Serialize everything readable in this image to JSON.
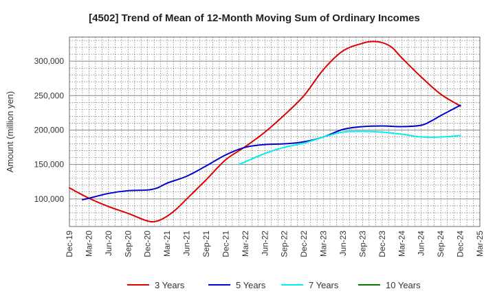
{
  "chart_data": {
    "type": "line",
    "title": "[4502]  Trend of Mean of 12-Month Moving Sum of Ordinary Incomes",
    "xlabel": "",
    "ylabel": "Amount (million yen)",
    "categories": [
      "Dec-19",
      "Mar-20",
      "Jun-20",
      "Sep-20",
      "Dec-20",
      "Mar-21",
      "Jun-21",
      "Sep-21",
      "Dec-21",
      "Mar-22",
      "Jun-22",
      "Sep-22",
      "Dec-22",
      "Mar-23",
      "Jun-23",
      "Sep-23",
      "Dec-23",
      "Mar-24",
      "Jun-24",
      "Sep-24",
      "Dec-24",
      "Mar-25"
    ],
    "ylim": [
      60000,
      335000
    ],
    "yticks": [
      100000,
      150000,
      200000,
      250000,
      300000
    ],
    "ytick_labels": [
      "100,000",
      "150,000",
      "200,000",
      "250,000",
      "300,000"
    ],
    "series": [
      {
        "name": "3 Years",
        "color": "#dd0000",
        "points": [
          [
            0,
            116000
          ],
          [
            1,
            101000
          ],
          [
            2,
            89000
          ],
          [
            3,
            79000
          ],
          [
            4,
            68000
          ],
          [
            4.5,
            68000
          ],
          [
            5,
            75000
          ],
          [
            5.5,
            86000
          ],
          [
            6,
            100000
          ],
          [
            7,
            128000
          ],
          [
            8,
            157000
          ],
          [
            9,
            176000
          ],
          [
            10,
            197000
          ],
          [
            11,
            222000
          ],
          [
            12,
            250000
          ],
          [
            13,
            288000
          ],
          [
            14,
            315000
          ],
          [
            15,
            326000
          ],
          [
            15.5,
            328500
          ],
          [
            16,
            327000
          ],
          [
            16.5,
            320000
          ],
          [
            17,
            305000
          ],
          [
            18,
            277000
          ],
          [
            19,
            252000
          ],
          [
            20,
            235000
          ]
        ]
      },
      {
        "name": "5 Years",
        "color": "#0000cc",
        "points": [
          [
            0.67,
            99000
          ],
          [
            1,
            101000
          ],
          [
            2,
            108000
          ],
          [
            3,
            112000
          ],
          [
            4,
            113000
          ],
          [
            4.5,
            116000
          ],
          [
            5,
            123000
          ],
          [
            6,
            133000
          ],
          [
            7,
            148000
          ],
          [
            8,
            164000
          ],
          [
            9,
            175000
          ],
          [
            10,
            179000
          ],
          [
            11,
            180000
          ],
          [
            12,
            183000
          ],
          [
            13,
            190000
          ],
          [
            14,
            201000
          ],
          [
            15,
            205000
          ],
          [
            16,
            206000
          ],
          [
            17,
            205000
          ],
          [
            18,
            207000
          ],
          [
            18.5,
            213000
          ],
          [
            19,
            221000
          ],
          [
            20,
            236000
          ]
        ]
      },
      {
        "name": "7 Years",
        "color": "#00eeee",
        "points": [
          [
            8.67,
            150000
          ],
          [
            9,
            154000
          ],
          [
            10,
            166000
          ],
          [
            11,
            175000
          ],
          [
            12,
            181000
          ],
          [
            13,
            190000
          ],
          [
            14,
            197000
          ],
          [
            15,
            198000
          ],
          [
            16,
            197000
          ],
          [
            17,
            194000
          ],
          [
            18,
            190000
          ],
          [
            19,
            190000
          ],
          [
            20,
            192000
          ]
        ]
      },
      {
        "name": "10 Years",
        "color": "#007700",
        "points": []
      }
    ]
  }
}
